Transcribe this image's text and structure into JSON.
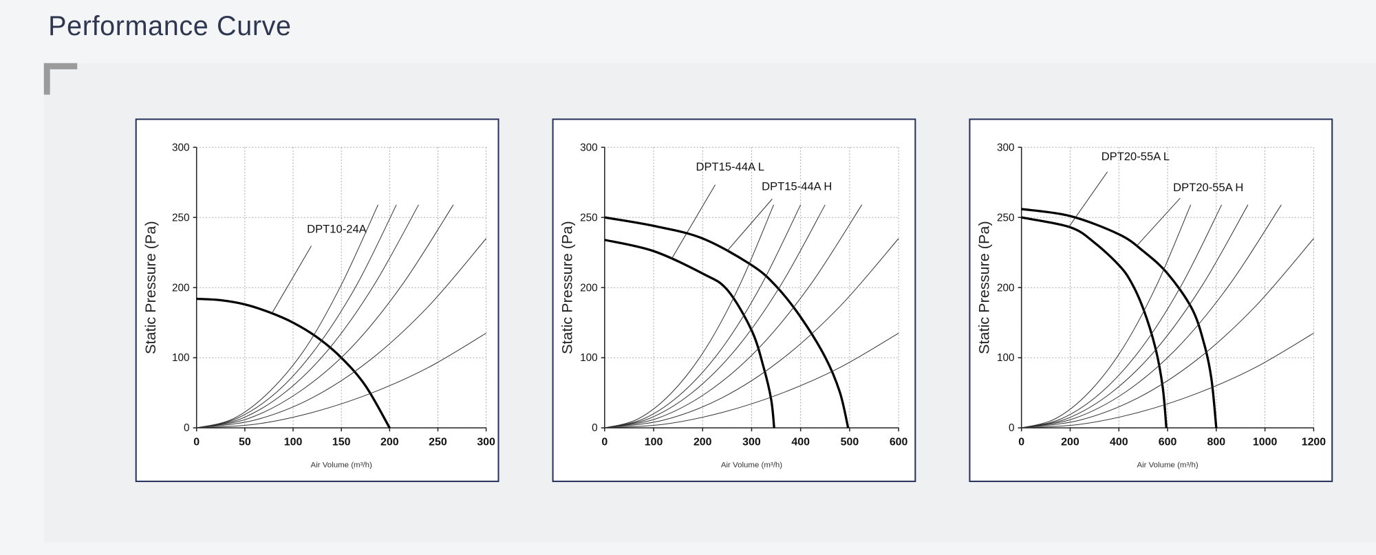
{
  "page_title": "Performance Curve",
  "chart_data": [
    {
      "type": "line",
      "x_label": "Air Volume (m³/h)",
      "y_label": "Static Pressure (Pa)",
      "xlim": [
        0,
        300
      ],
      "ylim": [
        0,
        300
      ],
      "xticks": [
        0,
        50,
        100,
        150,
        200,
        250,
        300
      ],
      "yticks": [
        0,
        100,
        200,
        250,
        300
      ],
      "y_scale": "even-ticks",
      "grid": true,
      "series": [
        {
          "name": "DPT10-24A",
          "color": "#000000",
          "x": [
            0,
            25,
            50,
            75,
            100,
            125,
            150,
            175,
            200
          ],
          "values": [
            184,
            182,
            176,
            165,
            150,
            129,
            100,
            60,
            0
          ]
        },
        {
          "color": "#333333",
          "x": [
            0,
            38,
            75,
            113,
            150,
            188
          ],
          "values": [
            0,
            13,
            51,
            114,
            202,
            259
          ]
        },
        {
          "color": "#333333",
          "x": [
            0,
            41,
            83,
            124,
            166,
            207
          ],
          "values": [
            0,
            13,
            51,
            114,
            202,
            259
          ]
        },
        {
          "color": "#333333",
          "x": [
            0,
            46,
            92,
            138,
            184,
            230
          ],
          "values": [
            0,
            13,
            51,
            114,
            202,
            259
          ]
        },
        {
          "color": "#333333",
          "x": [
            0,
            53,
            106,
            160,
            213,
            266
          ],
          "values": [
            0,
            13,
            51,
            114,
            202,
            259
          ]
        },
        {
          "color": "#333333",
          "x": [
            0,
            60,
            120,
            180,
            240,
            300
          ],
          "values": [
            0,
            11,
            43,
            97,
            173,
            235
          ]
        },
        {
          "color": "#333333",
          "x": [
            0,
            60,
            120,
            180,
            240,
            300
          ],
          "values": [
            0,
            5,
            22,
            49,
            86,
            135
          ]
        }
      ]
    },
    {
      "type": "line",
      "x_label": "Air Volume (m³/h)",
      "y_label": "Static Pressure (Pa)",
      "xlim": [
        0,
        600
      ],
      "ylim": [
        0,
        300
      ],
      "xticks": [
        0,
        100,
        200,
        300,
        400,
        500,
        600
      ],
      "yticks": [
        0,
        100,
        200,
        250,
        300
      ],
      "y_scale": "even-ticks",
      "grid": true,
      "series": [
        {
          "name": "DPT15-44A L",
          "color": "#000000",
          "x": [
            0,
            100,
            200,
            250,
            300,
            325,
            340,
            346
          ],
          "values": [
            234,
            226,
            210,
            197,
            139,
            85,
            40,
            0
          ]
        },
        {
          "name": "DPT15-44A H",
          "color": "#000000",
          "x": [
            0,
            100,
            200,
            300,
            350,
            400,
            450,
            480,
            497
          ],
          "values": [
            250,
            244,
            235,
            216,
            201,
            158,
            101,
            51,
            0
          ]
        },
        {
          "color": "#333333",
          "x": [
            0,
            69,
            138,
            207,
            276,
            345
          ],
          "values": [
            0,
            13,
            51,
            114,
            202,
            259
          ]
        },
        {
          "color": "#333333",
          "x": [
            0,
            80,
            160,
            240,
            320,
            400
          ],
          "values": [
            0,
            13,
            51,
            114,
            202,
            259
          ]
        },
        {
          "color": "#333333",
          "x": [
            0,
            90,
            180,
            270,
            360,
            450
          ],
          "values": [
            0,
            13,
            51,
            114,
            202,
            259
          ]
        },
        {
          "color": "#333333",
          "x": [
            0,
            105,
            210,
            315,
            420,
            525
          ],
          "values": [
            0,
            13,
            51,
            114,
            202,
            259
          ]
        },
        {
          "color": "#333333",
          "x": [
            0,
            120,
            240,
            360,
            480,
            600
          ],
          "values": [
            0,
            11,
            43,
            97,
            173,
            235
          ]
        },
        {
          "color": "#333333",
          "x": [
            0,
            120,
            240,
            360,
            480,
            600
          ],
          "values": [
            0,
            5,
            22,
            49,
            86,
            135
          ]
        }
      ]
    },
    {
      "type": "line",
      "x_label": "Air Volume (m³/h)",
      "y_label": "Static Pressure (Pa)",
      "xlim": [
        0,
        1200
      ],
      "ylim": [
        0,
        300
      ],
      "xticks": [
        0,
        200,
        400,
        600,
        800,
        1000,
        1200
      ],
      "yticks": [
        0,
        100,
        200,
        250,
        300
      ],
      "y_scale": "even-ticks",
      "grid": true,
      "series": [
        {
          "name": "DPT20-55A L",
          "color": "#000000",
          "x": [
            0,
            200,
            300,
            400,
            450,
            500,
            550,
            580,
            595
          ],
          "values": [
            250,
            243,
            232,
            216,
            204,
            170,
            114,
            58,
            0
          ]
        },
        {
          "name": "DPT20-55A H",
          "color": "#000000",
          "x": [
            0,
            200,
            400,
            500,
            600,
            700,
            750,
            780,
            800
          ],
          "values": [
            256,
            251,
            238,
            226,
            210,
            170,
            120,
            70,
            0
          ]
        },
        {
          "color": "#333333",
          "x": [
            0,
            139,
            278,
            417,
            556,
            695
          ],
          "values": [
            0,
            13,
            51,
            114,
            202,
            259
          ]
        },
        {
          "color": "#333333",
          "x": [
            0,
            164,
            329,
            493,
            658,
            822
          ],
          "values": [
            0,
            13,
            51,
            114,
            202,
            259
          ]
        },
        {
          "color": "#333333",
          "x": [
            0,
            186,
            372,
            558,
            744,
            930
          ],
          "values": [
            0,
            13,
            51,
            114,
            202,
            259
          ]
        },
        {
          "color": "#333333",
          "x": [
            0,
            213,
            427,
            640,
            854,
            1067
          ],
          "values": [
            0,
            13,
            51,
            114,
            202,
            259
          ]
        },
        {
          "color": "#333333",
          "x": [
            0,
            240,
            480,
            720,
            960,
            1200
          ],
          "values": [
            0,
            11,
            43,
            97,
            173,
            235
          ]
        },
        {
          "color": "#333333",
          "x": [
            0,
            240,
            480,
            720,
            960,
            1200
          ],
          "values": [
            0,
            5,
            22,
            49,
            86,
            135
          ]
        }
      ]
    }
  ]
}
